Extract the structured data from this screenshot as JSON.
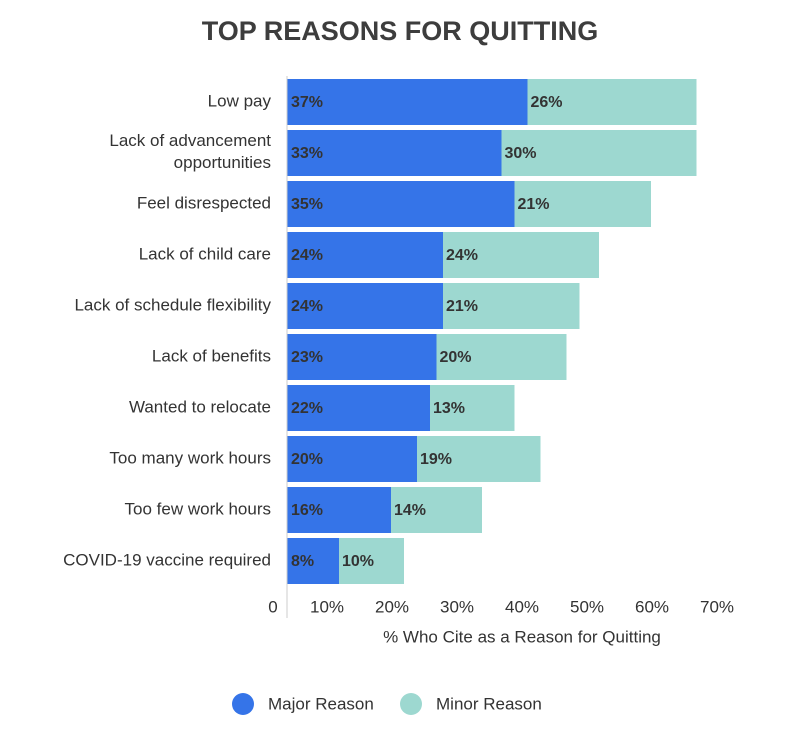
{
  "chart_data": {
    "type": "stacked-barh",
    "title": "TOP REASONS FOR QUITTING",
    "x_label": "% Who Cite as a Reason for Quitting",
    "categories": [
      "Low pay",
      "Lack of advancement opportunities",
      "Feel disrespected",
      "Lack of child care",
      "Lack of schedule flexibility",
      "Lack of benefits",
      "Wanted to relocate",
      "Too many work hours",
      "Too few work hours",
      "COVID-19 vaccine required"
    ],
    "series": [
      {
        "name": "Major Reason",
        "color": "#3574e8",
        "values": [
          37,
          33,
          35,
          24,
          24,
          23,
          22,
          20,
          16,
          8
        ],
        "value_labels": [
          "37%",
          "33%",
          "35%",
          "24%",
          "24%",
          "23%",
          "22%",
          "20%",
          "16%",
          "8%"
        ]
      },
      {
        "name": "Minor Reason",
        "color": "#9dd8d0",
        "values": [
          26,
          30,
          21,
          24,
          21,
          20,
          13,
          19,
          14,
          10
        ],
        "value_labels": [
          "26%",
          "30%",
          "21%",
          "24%",
          "21%",
          "20%",
          "13%",
          "19%",
          "14%",
          "10%"
        ]
      }
    ],
    "xlim": [
      0,
      70
    ],
    "xticks": [
      0,
      {
        "value": 10,
        "label": "10%"
      },
      {
        "value": 20,
        "label": "20%"
      },
      {
        "value": 30,
        "label": "30%"
      },
      {
        "value": 40,
        "label": "40%"
      },
      {
        "value": 50,
        "label": "50%"
      },
      {
        "value": 60,
        "label": "60%"
      },
      {
        "value": 70,
        "label": "70%"
      }
    ],
    "legend": "bottom"
  }
}
